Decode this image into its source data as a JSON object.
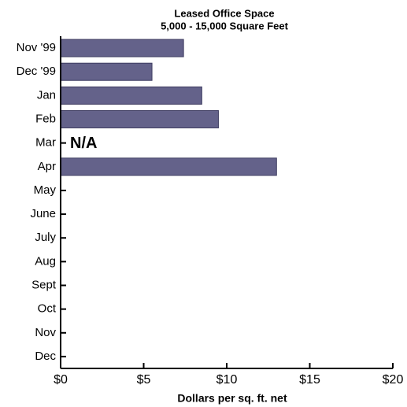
{
  "chart_data": {
    "type": "bar",
    "orientation": "horizontal",
    "title": "Leased Office Space",
    "subtitle": "5,000 - 15,000 Square Feet",
    "x_label": "Dollars per sq. ft. net",
    "categories": [
      "Nov '99",
      "Dec '99",
      "Jan",
      "Feb",
      "Mar",
      "Apr",
      "May",
      "June",
      "July",
      "Aug",
      "Sept",
      "Oct",
      "Nov",
      "Dec"
    ],
    "values": [
      7.4,
      5.5,
      8.5,
      9.5,
      null,
      13.0,
      null,
      null,
      null,
      null,
      null,
      null,
      null,
      null
    ],
    "color": "#64628a",
    "xlim": [
      0,
      20
    ],
    "xticks": [
      {
        "value": 0,
        "label": "$0"
      },
      {
        "value": 5,
        "label": "$5"
      },
      {
        "value": 10,
        "label": "$10"
      },
      {
        "value": 15,
        "label": "$15"
      },
      {
        "value": 20,
        "label": "$20"
      }
    ],
    "annotations": [
      {
        "text": "N/A",
        "category": "Mar"
      }
    ]
  }
}
